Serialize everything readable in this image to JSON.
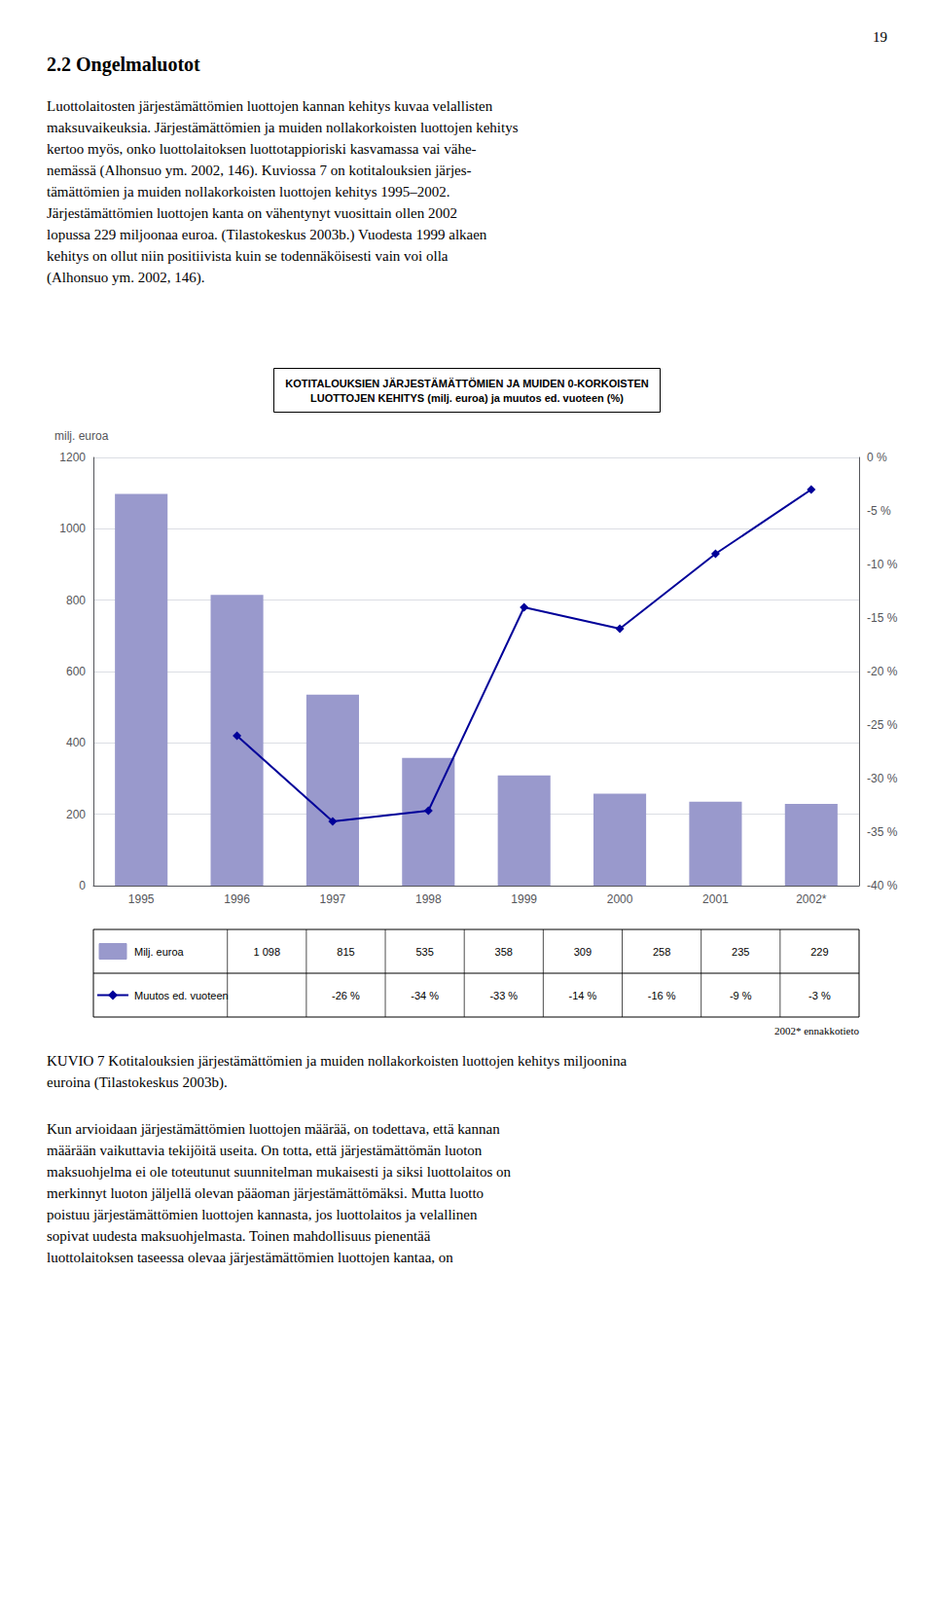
{
  "chart_data": {
    "type": "bar",
    "title": "KOTITALOUKSIEN JÄRJESTÄMÄTTÖMIEN JA MUIDEN 0-KORKOISTEN\nLUOTTOJEN KEHITYS (milj. euroa) ja muutos ed. vuoteen (%)",
    "ylabel": "milj. euroa",
    "categories": [
      "1995",
      "1996",
      "1997",
      "1998",
      "1999",
      "2000",
      "2001",
      "2002*"
    ],
    "series": [
      {
        "name": "Milj. euroa",
        "type": "bar",
        "color": "#9999cc",
        "values": [
          1098,
          815,
          535,
          358,
          309,
          258,
          235,
          229
        ],
        "value_labels": [
          "1 098",
          "815",
          "535",
          "358",
          "309",
          "258",
          "235",
          "229"
        ]
      },
      {
        "name": "Muutos ed. vuoteen",
        "type": "line",
        "axis": "y2",
        "color": "#000099",
        "marker": "diamond",
        "values": [
          null,
          -26,
          -34,
          -33,
          -14,
          -16,
          -9,
          -3
        ],
        "value_labels": [
          null,
          "-26 %",
          "-34 %",
          "-33 %",
          "-14 %",
          "-16 %",
          "-9 %",
          "-3 %"
        ]
      }
    ],
    "ylim": [
      0,
      1200
    ],
    "yticks": [
      0,
      200,
      400,
      600,
      800,
      1000,
      1200
    ],
    "y2lim": [
      -40,
      0
    ],
    "y2ticks": [
      {
        "value": 0,
        "label": "0 %"
      },
      {
        "value": -5,
        "label": "-5 %"
      },
      {
        "value": -10,
        "label": "-10 %"
      },
      {
        "value": -15,
        "label": "-15 %"
      },
      {
        "value": -20,
        "label": "-20 %"
      },
      {
        "value": -25,
        "label": "-25 %"
      },
      {
        "value": -30,
        "label": "-30 %"
      },
      {
        "value": -35,
        "label": "-35 %"
      },
      {
        "value": -40,
        "label": "-40 %"
      }
    ],
    "grid": true,
    "annotations": [
      "19",
      "2.2 Ongelmaluotot",
      "Luottolaitosten järjestämättömien luottojen kannan kehitys kuvaa velallisten\nmaksuvaikeuksia. Järjestämättömien ja muiden nollakorkoisten luottojen kehitys\nkertoo myös, onko luottolaitoksen luottotappioriski kasvamassa vai vähe-\nnemässä (Alhonsuo ym. 2002, 146). Kuviossa 7 on kotitalouksien järjes-\ntämättömien ja muiden nollakorkoisten luottojen kehitys 1995–2002.\nJärjestämättömien luottojen kanta on vähentynyt vuosittain ollen 2002\nlopussa 229 miljoonaa euroa. (Tilastokeskus 2003b.) Vuodesta 1999 alkaen\nkehitys on ollut niin positiivista kuin se todennäköisesti vain voi olla\n(Alhonsuo ym. 2002, 146).",
      "2002* ennakkotieto",
      "KUVIO 7 Kotitalouksien järjestämättömien ja muiden nollakorkoisten luottojen kehitys miljoonina\neuroina (Tilastokeskus 2003b).",
      "Kun arvioidaan järjestämättömien luottojen määrää, on todettava, että kannan\nmäärään vaikuttavia tekijöitä useita. On totta, että järjestämättömän luoton\nmaksuohjelma ei ole toteutunut suunnitelman mukaisesti ja siksi luottolaitos on\nmerkinnyt luoton jäljellä olevan pääoman järjestämättömäksi. Mutta luotto\npoistuu järjestämättömien luottojen kannasta, jos luottolaitos ja velallinen\nsopivat uudesta maksuohjelmasta. Toinen mahdollisuus pienentää\nluottolaitoksen taseessa olevaa järjestämättömien luottojen kantaa, on"
    ]
  }
}
